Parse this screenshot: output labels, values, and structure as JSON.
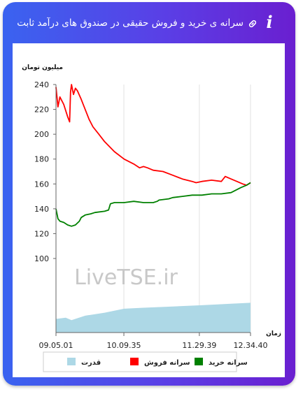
{
  "header": {
    "title": "سرانه ی خرید و فروش حقیقی در صندوق های درآمد ثابت",
    "info_icon_glyph": "i",
    "link_icon": "link-icon",
    "info_icon": "info-icon"
  },
  "colors": {
    "gradient_start": "#3a63f0",
    "gradient_end": "#6a1fd0",
    "sell": "#ff0000",
    "buy": "#008000",
    "power": "#add8e6"
  },
  "watermark": "LiveTSE.ir",
  "chart_data": {
    "type": "line",
    "ylabel": "میلیون تومان",
    "xlabel": "زمان",
    "ylim": [
      80,
      240
    ],
    "yticks": [
      100,
      120,
      140,
      160,
      180,
      200,
      220,
      240
    ],
    "xtick_labels": [
      "09.05.01",
      "10.09.35",
      "11.29.39",
      "12.34.40"
    ],
    "xtick_positions": [
      0,
      0.349,
      0.737,
      1
    ],
    "grid": "vertical",
    "legend_position": "bottom",
    "legend": [
      {
        "label": "قدرت",
        "color": "#add8e6"
      },
      {
        "label": "سرانه فروش",
        "color": "#ff0000"
      },
      {
        "label": "سرانه خرید",
        "color": "#008000"
      }
    ],
    "series": [
      {
        "name": "سرانه فروش",
        "x": [
          0,
          0.01,
          0.02,
          0.04,
          0.06,
          0.07,
          0.075,
          0.08,
          0.09,
          0.1,
          0.11,
          0.13,
          0.15,
          0.17,
          0.19,
          0.22,
          0.25,
          0.3,
          0.35,
          0.4,
          0.43,
          0.45,
          0.47,
          0.5,
          0.55,
          0.6,
          0.65,
          0.7,
          0.72,
          0.75,
          0.8,
          0.85,
          0.87,
          0.9,
          0.93,
          0.96,
          0.98,
          1
        ],
        "values": [
          238,
          222,
          230,
          224,
          214,
          210,
          234,
          240,
          232,
          237,
          235,
          228,
          220,
          212,
          206,
          200,
          194,
          186,
          180,
          176,
          173,
          174,
          173,
          171,
          170,
          167,
          164,
          162,
          161,
          162,
          163,
          162,
          166,
          164,
          162,
          160,
          159,
          161
        ]
      },
      {
        "name": "سرانه خرید",
        "x": [
          0,
          0.01,
          0.02,
          0.04,
          0.06,
          0.08,
          0.1,
          0.12,
          0.13,
          0.15,
          0.18,
          0.2,
          0.25,
          0.27,
          0.28,
          0.3,
          0.35,
          0.4,
          0.45,
          0.5,
          0.52,
          0.53,
          0.58,
          0.6,
          0.65,
          0.7,
          0.75,
          0.8,
          0.85,
          0.9,
          0.95,
          0.98,
          1
        ],
        "values": [
          140,
          132,
          130,
          129,
          127,
          126,
          127,
          130,
          133,
          135,
          136,
          137,
          138,
          139,
          144,
          145,
          145,
          146,
          145,
          145,
          146,
          147,
          148,
          149,
          150,
          151,
          151,
          152,
          152,
          153,
          157,
          159,
          161
        ]
      },
      {
        "name": "قدرت",
        "x": [
          0,
          0.05,
          0.08,
          0.15,
          0.25,
          0.35,
          0.45,
          0.6,
          0.75,
          0.9,
          1
        ],
        "values": [
          0.055,
          0.06,
          0.05,
          0.068,
          0.08,
          0.096,
          0.1,
          0.105,
          0.11,
          0.116,
          0.12
        ]
      }
    ]
  }
}
